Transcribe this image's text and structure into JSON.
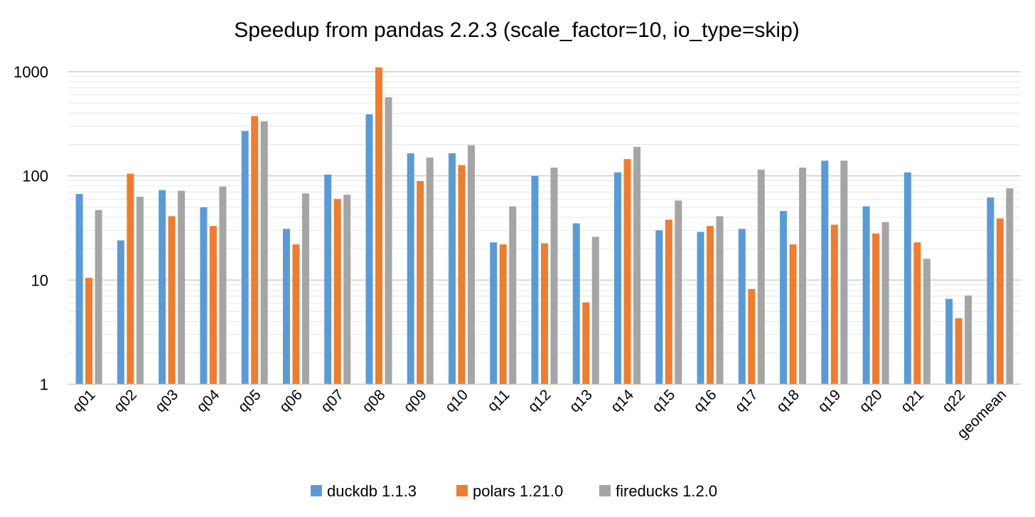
{
  "chart_data": {
    "type": "bar",
    "title": "Speedup from pandas 2.2.3 (scale_factor=10, io_type=skip)",
    "y_scale": "log",
    "ylim": [
      1,
      1000
    ],
    "yticks": [
      "1",
      "10",
      "100",
      "1000"
    ],
    "categories": [
      "q01",
      "q02",
      "q03",
      "q04",
      "q05",
      "q06",
      "q07",
      "q08",
      "q09",
      "q10",
      "q11",
      "q12",
      "q13",
      "q14",
      "q15",
      "q16",
      "q17",
      "q18",
      "q19",
      "q20",
      "q21",
      "q22",
      "geomean"
    ],
    "series": [
      {
        "name": "duckdb 1.1.3",
        "color": "#5b9bd5",
        "values": [
          67,
          24,
          73,
          50,
          270,
          31,
          103,
          390,
          165,
          165,
          23,
          100,
          35,
          108,
          30,
          29,
          31,
          46,
          140,
          51,
          108,
          6.6,
          62
        ]
      },
      {
        "name": "polars 1.21.0",
        "color": "#ed7d31",
        "values": [
          10.5,
          105,
          41,
          33,
          375,
          22,
          60,
          1100,
          89,
          127,
          22,
          22.5,
          6.1,
          145,
          38,
          33,
          8.2,
          22,
          34,
          28,
          23,
          4.3,
          39
        ]
      },
      {
        "name": "fireducks 1.2.0",
        "color": "#a5a5a5",
        "values": [
          47,
          63,
          72,
          79,
          335,
          68,
          66,
          570,
          150,
          197,
          51,
          120,
          26,
          190,
          58,
          41,
          115,
          120,
          140,
          36,
          16,
          7.1,
          76
        ]
      }
    ],
    "legend": "bottom-center",
    "grid": true
  }
}
